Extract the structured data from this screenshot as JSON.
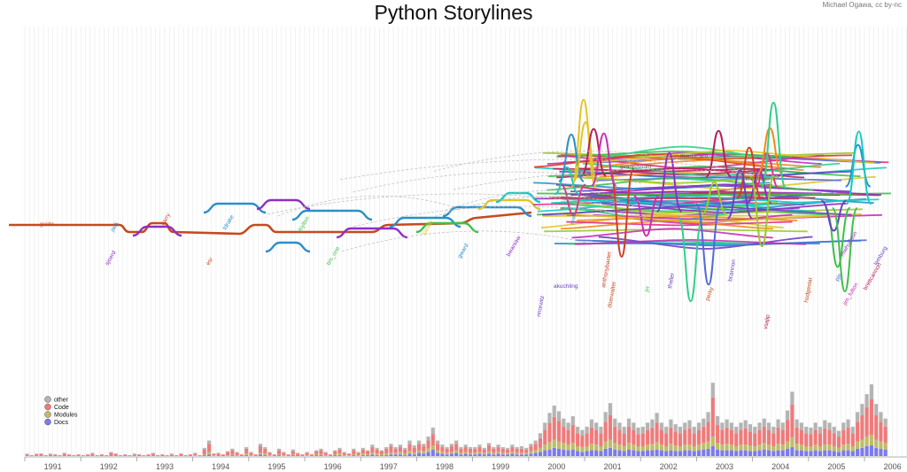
{
  "title": "Python Storylines",
  "credit": "Michael Ogawa, cc by-nc",
  "chart_data": {
    "type": "storyline+stacked-bar",
    "x_axis": {
      "years": [
        "1991",
        "1992",
        "1993",
        "1994",
        "1995",
        "1996",
        "1997",
        "1998",
        "1999",
        "2000",
        "2001",
        "2002",
        "2003",
        "2004",
        "2005",
        "2006"
      ]
    },
    "legend": [
      {
        "label": "other",
        "color": "#b4b4b4"
      },
      {
        "label": "Code",
        "color": "#f07a7a"
      },
      {
        "label": "Modules",
        "color": "#bdbd6a"
      },
      {
        "label": "Docs",
        "color": "#7a7af0"
      }
    ],
    "storylines": {
      "developer_labels": [
        "guido",
        "jack",
        "sjoerd",
        "barry",
        "fdrake",
        "jhylton",
        "tim_one",
        "loewis",
        "mwh",
        "gvanrossum",
        "montanaro",
        "rhettinger",
        "akuchling",
        "nnorwitz",
        "doerwalter",
        "anthonybaxter",
        "jvr",
        "theller",
        "perky",
        "bcannon",
        "vsajip",
        "hodgestar",
        "pje",
        "jim_fulton",
        "brettcannon",
        "mwhudson",
        "lemburg",
        "esr",
        "gward",
        "bwarsaw"
      ]
    },
    "commit_bars_note": "stacked monthly commit counts per category; heights estimated",
    "commit_bars": {
      "1991": [
        [
          1,
          2,
          0,
          0
        ],
        [
          0,
          1,
          0,
          0
        ],
        [
          1,
          2,
          0,
          0
        ],
        [
          0,
          3,
          0,
          0
        ],
        [
          0,
          1,
          0,
          0
        ],
        [
          1,
          2,
          0,
          0
        ],
        [
          0,
          2,
          0,
          0
        ],
        [
          0,
          1,
          0,
          0
        ],
        [
          1,
          3,
          0,
          0
        ],
        [
          0,
          2,
          0,
          0
        ],
        [
          0,
          1,
          0,
          0
        ],
        [
          0,
          2,
          0,
          0
        ]
      ],
      "1992": [
        [
          0,
          1,
          0,
          0
        ],
        [
          0,
          2,
          0,
          0
        ],
        [
          1,
          3,
          0,
          0
        ],
        [
          0,
          1,
          0,
          0
        ],
        [
          0,
          2,
          0,
          0
        ],
        [
          0,
          1,
          0,
          0
        ],
        [
          1,
          4,
          0,
          0
        ],
        [
          0,
          3,
          0,
          0
        ],
        [
          0,
          1,
          0,
          0
        ],
        [
          0,
          2,
          0,
          0
        ],
        [
          0,
          1,
          0,
          0
        ],
        [
          1,
          2,
          0,
          0
        ]
      ],
      "1993": [
        [
          0,
          2,
          0,
          0
        ],
        [
          0,
          1,
          0,
          0
        ],
        [
          0,
          2,
          0,
          0
        ],
        [
          1,
          3,
          0,
          0
        ],
        [
          0,
          1,
          0,
          0
        ],
        [
          0,
          2,
          0,
          0
        ],
        [
          0,
          1,
          0,
          0
        ],
        [
          1,
          2,
          0,
          0
        ],
        [
          0,
          1,
          0,
          0
        ],
        [
          0,
          3,
          0,
          0
        ],
        [
          0,
          1,
          0,
          0
        ],
        [
          0,
          2,
          0,
          0
        ]
      ],
      "1994": [
        [
          1,
          2,
          1,
          0
        ],
        [
          0,
          1,
          0,
          0
        ],
        [
          2,
          6,
          1,
          1
        ],
        [
          4,
          10,
          3,
          2
        ],
        [
          0,
          2,
          1,
          0
        ],
        [
          1,
          3,
          0,
          0
        ],
        [
          0,
          2,
          0,
          0
        ],
        [
          1,
          4,
          1,
          0
        ],
        [
          2,
          5,
          1,
          1
        ],
        [
          1,
          3,
          1,
          0
        ],
        [
          0,
          2,
          0,
          0
        ],
        [
          2,
          6,
          2,
          1
        ]
      ],
      "1995": [
        [
          1,
          3,
          1,
          0
        ],
        [
          0,
          2,
          0,
          0
        ],
        [
          3,
          8,
          2,
          2
        ],
        [
          2,
          6,
          2,
          1
        ],
        [
          1,
          3,
          1,
          0
        ],
        [
          0,
          2,
          0,
          0
        ],
        [
          2,
          5,
          1,
          1
        ],
        [
          1,
          3,
          1,
          0
        ],
        [
          0,
          2,
          0,
          0
        ],
        [
          2,
          4,
          1,
          1
        ],
        [
          1,
          3,
          0,
          0
        ],
        [
          0,
          2,
          0,
          0
        ]
      ],
      "1996": [
        [
          1,
          3,
          1,
          0
        ],
        [
          0,
          2,
          0,
          0
        ],
        [
          1,
          4,
          1,
          1
        ],
        [
          2,
          5,
          1,
          1
        ],
        [
          1,
          3,
          1,
          0
        ],
        [
          0,
          2,
          0,
          0
        ],
        [
          1,
          4,
          1,
          1
        ],
        [
          2,
          5,
          2,
          1
        ],
        [
          1,
          3,
          1,
          0
        ],
        [
          0,
          2,
          1,
          0
        ],
        [
          2,
          5,
          1,
          1
        ],
        [
          1,
          3,
          1,
          0
        ]
      ],
      "1997": [
        [
          2,
          5,
          2,
          1
        ],
        [
          1,
          4,
          1,
          1
        ],
        [
          3,
          7,
          2,
          2
        ],
        [
          2,
          5,
          2,
          1
        ],
        [
          1,
          4,
          1,
          1
        ],
        [
          2,
          6,
          2,
          1
        ],
        [
          3,
          8,
          2,
          2
        ],
        [
          2,
          5,
          2,
          2
        ],
        [
          3,
          6,
          3,
          2
        ],
        [
          2,
          5,
          2,
          1
        ],
        [
          4,
          9,
          3,
          3
        ],
        [
          3,
          6,
          2,
          2
        ]
      ],
      "1998": [
        [
          4,
          8,
          3,
          4
        ],
        [
          3,
          6,
          3,
          3
        ],
        [
          5,
          10,
          4,
          5
        ],
        [
          8,
          14,
          5,
          8
        ],
        [
          4,
          8,
          3,
          4
        ],
        [
          3,
          6,
          2,
          3
        ],
        [
          2,
          5,
          2,
          2
        ],
        [
          3,
          7,
          2,
          3
        ],
        [
          4,
          8,
          3,
          4
        ],
        [
          2,
          5,
          2,
          2
        ],
        [
          3,
          6,
          2,
          3
        ],
        [
          2,
          5,
          2,
          2
        ]
      ],
      "1999": [
        [
          2,
          5,
          2,
          2
        ],
        [
          3,
          6,
          2,
          3
        ],
        [
          2,
          4,
          2,
          2
        ],
        [
          3,
          7,
          3,
          3
        ],
        [
          2,
          5,
          2,
          2
        ],
        [
          3,
          6,
          2,
          3
        ],
        [
          2,
          5,
          2,
          2
        ],
        [
          2,
          4,
          2,
          2
        ],
        [
          3,
          6,
          2,
          3
        ],
        [
          2,
          5,
          2,
          2
        ],
        [
          3,
          5,
          2,
          2
        ],
        [
          2,
          4,
          2,
          2
        ]
      ],
      "2000": [
        [
          3,
          6,
          3,
          3
        ],
        [
          4,
          8,
          3,
          4
        ],
        [
          6,
          12,
          5,
          5
        ],
        [
          9,
          18,
          7,
          7
        ],
        [
          12,
          24,
          9,
          8
        ],
        [
          14,
          28,
          10,
          10
        ],
        [
          12,
          25,
          9,
          9
        ],
        [
          10,
          20,
          8,
          8
        ],
        [
          9,
          18,
          7,
          7
        ],
        [
          11,
          22,
          8,
          8
        ],
        [
          8,
          16,
          6,
          6
        ],
        [
          7,
          14,
          6,
          5
        ]
      ],
      "2001": [
        [
          8,
          16,
          6,
          6
        ],
        [
          10,
          20,
          8,
          7
        ],
        [
          9,
          18,
          7,
          7
        ],
        [
          8,
          16,
          6,
          6
        ],
        [
          12,
          24,
          9,
          9
        ],
        [
          15,
          30,
          10,
          10
        ],
        [
          10,
          20,
          8,
          8
        ],
        [
          9,
          18,
          7,
          7
        ],
        [
          8,
          16,
          6,
          6
        ],
        [
          10,
          20,
          8,
          8
        ],
        [
          9,
          18,
          7,
          7
        ],
        [
          8,
          15,
          6,
          6
        ]
      ],
      "2002": [
        [
          8,
          16,
          6,
          6
        ],
        [
          9,
          18,
          7,
          7
        ],
        [
          10,
          20,
          8,
          7
        ],
        [
          12,
          24,
          9,
          8
        ],
        [
          9,
          18,
          7,
          7
        ],
        [
          8,
          16,
          6,
          6
        ],
        [
          10,
          20,
          8,
          7
        ],
        [
          9,
          17,
          7,
          6
        ],
        [
          8,
          16,
          6,
          6
        ],
        [
          9,
          18,
          7,
          7
        ],
        [
          10,
          20,
          7,
          7
        ],
        [
          8,
          16,
          6,
          6
        ]
      ],
      "2003": [
        [
          9,
          18,
          7,
          7
        ],
        [
          10,
          20,
          8,
          8
        ],
        [
          12,
          24,
          9,
          9
        ],
        [
          18,
          48,
          12,
          12
        ],
        [
          11,
          22,
          8,
          8
        ],
        [
          9,
          18,
          7,
          7
        ],
        [
          10,
          20,
          8,
          7
        ],
        [
          9,
          18,
          7,
          7
        ],
        [
          8,
          16,
          6,
          6
        ],
        [
          9,
          18,
          7,
          7
        ],
        [
          10,
          20,
          7,
          7
        ],
        [
          9,
          17,
          7,
          6
        ]
      ],
      "2004": [
        [
          8,
          16,
          6,
          6
        ],
        [
          9,
          18,
          7,
          7
        ],
        [
          10,
          20,
          8,
          8
        ],
        [
          9,
          18,
          7,
          7
        ],
        [
          8,
          16,
          6,
          6
        ],
        [
          10,
          20,
          8,
          7
        ],
        [
          9,
          18,
          7,
          7
        ],
        [
          12,
          26,
          9,
          9
        ],
        [
          16,
          40,
          12,
          11
        ],
        [
          10,
          20,
          8,
          7
        ],
        [
          9,
          18,
          7,
          7
        ],
        [
          8,
          16,
          6,
          6
        ]
      ],
      "2005": [
        [
          8,
          15,
          6,
          6
        ],
        [
          9,
          18,
          7,
          7
        ],
        [
          8,
          16,
          6,
          6
        ],
        [
          10,
          20,
          7,
          7
        ],
        [
          9,
          18,
          7,
          7
        ],
        [
          8,
          16,
          6,
          6
        ],
        [
          7,
          14,
          5,
          5
        ],
        [
          9,
          18,
          7,
          7
        ],
        [
          10,
          20,
          8,
          7
        ],
        [
          8,
          16,
          6,
          6
        ],
        [
          12,
          24,
          9,
          9
        ],
        [
          14,
          30,
          10,
          10
        ]
      ],
      "2006": [
        [
          16,
          36,
          12,
          12
        ],
        [
          18,
          44,
          13,
          13
        ],
        [
          14,
          30,
          10,
          10
        ],
        [
          12,
          24,
          9,
          9
        ],
        [
          10,
          20,
          8,
          8
        ]
      ]
    }
  }
}
